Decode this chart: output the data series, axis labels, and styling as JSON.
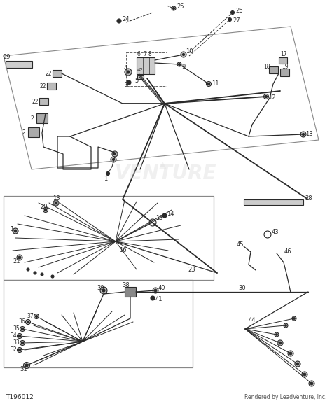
{
  "bg_color": "#ffffff",
  "dc": "#2a2a2a",
  "gray": "#888888",
  "lgray": "#bbbbbb",
  "dgray": "#555555",
  "watermark_text": "VENTURE",
  "bottom_left_text": "T196012",
  "bottom_right_text": "Rendered by LeadVenture, Inc.",
  "fw": 4.74,
  "fh": 5.73,
  "dpi": 100
}
